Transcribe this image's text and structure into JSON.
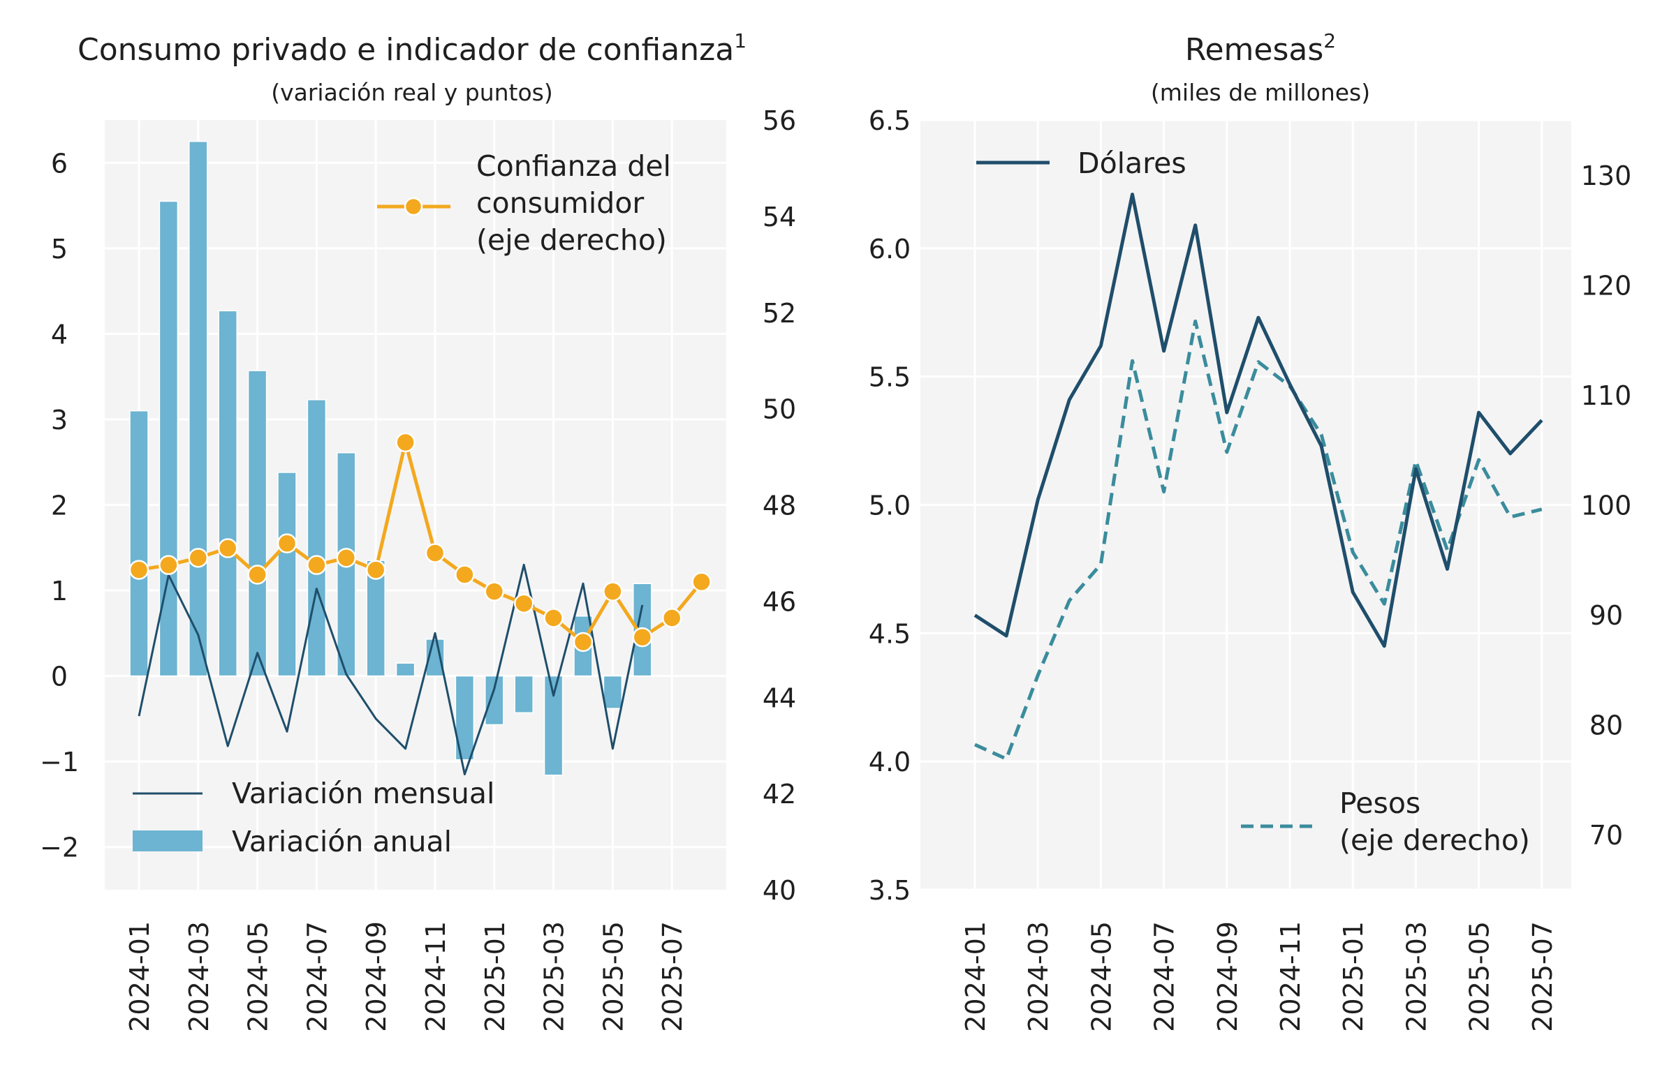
{
  "chart_data": [
    {
      "type": "bar+line",
      "title": "Consumo privado e indicador de confianza",
      "title_sup": "1",
      "subtitle": "(variación real y puntos)",
      "x": [
        "2024-01",
        "2024-02",
        "2024-03",
        "2024-04",
        "2024-05",
        "2024-06",
        "2024-07",
        "2024-08",
        "2024-09",
        "2024-10",
        "2024-11",
        "2024-12",
        "2025-01",
        "2025-02",
        "2025-03",
        "2025-04",
        "2025-05",
        "2025-06",
        "2025-07",
        "2025-08"
      ],
      "x_tick_labels": [
        "2024-01",
        "2024-03",
        "2024-05",
        "2024-07",
        "2024-09",
        "2024-11",
        "2025-01",
        "2025-03",
        "2025-05",
        "2025-07"
      ],
      "ylim_left": [
        -2.5,
        6.5
      ],
      "yticks_left": [
        -2,
        -1,
        0,
        1,
        2,
        3,
        4,
        5,
        6
      ],
      "yticks_left_labels": [
        "−2",
        "−1",
        "0",
        "1",
        "2",
        "3",
        "4",
        "5",
        "6"
      ],
      "ylim_right": [
        40,
        56
      ],
      "yticks_right": [
        40,
        42,
        44,
        46,
        48,
        50,
        52,
        54,
        56
      ],
      "grid": true,
      "series": [
        {
          "name": "Variación anual",
          "kind": "bar",
          "axis": "left",
          "color": "#6cb4d1",
          "values": [
            3.1,
            5.55,
            6.25,
            4.27,
            3.57,
            2.38,
            3.23,
            2.61,
            1.35,
            0.15,
            0.43,
            -0.98,
            -0.57,
            -0.43,
            -1.16,
            0.7,
            -0.38,
            1.08,
            null,
            null
          ]
        },
        {
          "name": "Variación mensual",
          "kind": "line",
          "axis": "left",
          "color": "#1f4e6b",
          "values": [
            -0.47,
            1.18,
            0.48,
            -0.82,
            0.27,
            -0.65,
            1.02,
            0.02,
            -0.5,
            -0.85,
            0.5,
            -1.15,
            -0.15,
            1.3,
            -0.23,
            1.08,
            -0.85,
            0.83,
            null,
            null
          ]
        },
        {
          "name_lines": [
            "Confianza del",
            "consumidor",
            "(eje derecho)"
          ],
          "kind": "line-marker",
          "axis": "right",
          "color": "#f3a81e",
          "values": [
            46.65,
            46.75,
            46.9,
            47.1,
            46.55,
            47.2,
            46.75,
            46.9,
            46.65,
            49.3,
            47.0,
            46.55,
            46.2,
            45.95,
            45.65,
            45.15,
            46.2,
            45.25,
            45.65,
            46.4
          ]
        }
      ],
      "legend_placement": [
        "top-right",
        "bottom-left"
      ]
    },
    {
      "type": "line",
      "title": "Remesas",
      "title_sup": "2",
      "subtitle": "(miles de millones)",
      "x": [
        "2024-01",
        "2024-02",
        "2024-03",
        "2024-04",
        "2024-05",
        "2024-06",
        "2024-07",
        "2024-08",
        "2024-09",
        "2024-10",
        "2024-11",
        "2024-12",
        "2025-01",
        "2025-02",
        "2025-03",
        "2025-04",
        "2025-05",
        "2025-06",
        "2025-07"
      ],
      "x_tick_labels": [
        "2024-01",
        "2024-03",
        "2024-05",
        "2024-07",
        "2024-09",
        "2024-11",
        "2025-01",
        "2025-03",
        "2025-05",
        "2025-07"
      ],
      "ylim_left": [
        3.5,
        6.5
      ],
      "yticks_left": [
        3.5,
        4.0,
        4.5,
        5.0,
        5.5,
        6.0,
        6.5
      ],
      "yticks_left_labels": [
        "3.5",
        "4.0",
        "4.5",
        "5.0",
        "5.5",
        "6.0",
        "6.5"
      ],
      "ylim_right": [
        65,
        135
      ],
      "yticks_right": [
        70,
        80,
        90,
        100,
        110,
        120,
        130
      ],
      "grid": true,
      "series": [
        {
          "name": "Dólares",
          "kind": "line",
          "axis": "left",
          "color": "#1f4e6b",
          "values": [
            4.57,
            4.49,
            5.02,
            5.41,
            5.62,
            6.21,
            5.6,
            6.09,
            5.36,
            5.73,
            5.47,
            5.23,
            4.66,
            4.45,
            5.14,
            4.75,
            5.36,
            5.2,
            5.33
          ]
        },
        {
          "name_lines": [
            "Pesos",
            "(eje derecho)"
          ],
          "kind": "dashed-line",
          "axis": "right",
          "color": "#3a8c9c",
          "values": [
            78.2,
            76.9,
            84.5,
            91.3,
            94.6,
            113.1,
            101.2,
            116.7,
            104.8,
            113.0,
            110.8,
            106.4,
            95.7,
            91.0,
            104.0,
            95.9,
            104.1,
            98.9,
            99.6
          ]
        }
      ],
      "legend_placement": [
        "top-left",
        "bottom-right"
      ]
    }
  ]
}
